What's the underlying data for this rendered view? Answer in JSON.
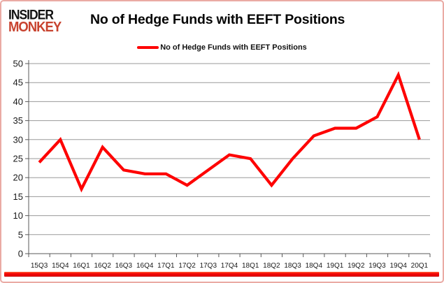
{
  "header": {
    "logo_line1": "INSIDER",
    "logo_line2": "MONKEY",
    "title": "No of Hedge Funds with EEFT Positions"
  },
  "legend": {
    "label": "No of Hedge Funds with EEFT Positions"
  },
  "colors": {
    "line": "#fe0000",
    "logo_monkey": "#c8432f",
    "grid": "#9a9a9a",
    "axis": "#595959",
    "border": "#eaaaa4",
    "bottom_bar": "#f60606"
  },
  "chart_data": {
    "type": "line",
    "title": "No of Hedge Funds with EEFT Positions",
    "categories": [
      "15Q3",
      "15Q4",
      "16Q1",
      "16Q2",
      "16Q3",
      "16Q4",
      "17Q1",
      "17Q2",
      "17Q3",
      "17Q4",
      "18Q1",
      "18Q2",
      "18Q3",
      "18Q4",
      "19Q1",
      "19Q2",
      "19Q3",
      "19Q4",
      "20Q1"
    ],
    "series": [
      {
        "name": "No of Hedge Funds with EEFT Positions",
        "values": [
          24,
          30,
          17,
          28,
          22,
          21,
          21,
          18,
          22,
          26,
          25,
          18,
          25,
          31,
          33,
          33,
          36,
          47,
          30
        ]
      }
    ],
    "xlabel": "",
    "ylabel": "",
    "ylim": [
      0,
      50
    ],
    "ytick_step": 5,
    "grid": true,
    "legend_position": "top-center"
  }
}
